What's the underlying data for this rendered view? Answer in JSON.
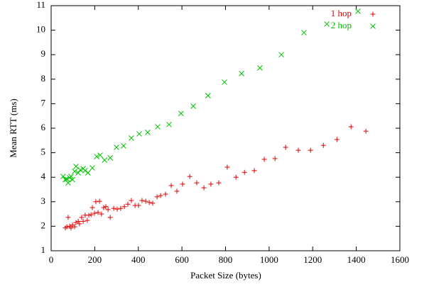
{
  "chart_data": {
    "type": "scatter",
    "x_label": "Packet Size (bytes)",
    "y_label": "Mean RTT (ms)",
    "xlim": [
      0,
      1600
    ],
    "xticks": [
      0,
      200,
      400,
      600,
      800,
      1000,
      1200,
      1400,
      1600
    ],
    "ylim": [
      1,
      11
    ],
    "yticks": [
      1,
      2,
      3,
      4,
      5,
      6,
      7,
      8,
      9,
      10,
      11
    ],
    "legend": "top-right",
    "series": [
      {
        "name": "1 hop",
        "color": "#e00000",
        "marker": "plus",
        "x": [
          72,
          78,
          65,
          85,
          91,
          98,
          108,
          114,
          124,
          130,
          140,
          147,
          156,
          166,
          173,
          183,
          189,
          199,
          205,
          215,
          222,
          231,
          241,
          251,
          261,
          271,
          287,
          303,
          319,
          336,
          352,
          368,
          385,
          401,
          417,
          434,
          450,
          466,
          486,
          502,
          525,
          551,
          577,
          603,
          636,
          668,
          701,
          733,
          769,
          808,
          848,
          887,
          932,
          978,
          1027,
          1076,
          1134,
          1190,
          1249,
          1311,
          1376,
          1444
        ],
        "values": [
          1.98,
          2.36,
          1.93,
          2.0,
          1.93,
          2.05,
          1.98,
          2.15,
          2.2,
          2.1,
          2.36,
          2.2,
          2.45,
          2.24,
          2.45,
          2.47,
          2.76,
          2.53,
          3.0,
          2.56,
          3.02,
          2.5,
          2.76,
          2.8,
          2.68,
          2.36,
          2.73,
          2.7,
          2.73,
          2.8,
          2.9,
          3.05,
          2.85,
          2.85,
          3.05,
          3.02,
          2.97,
          2.94,
          3.2,
          3.25,
          3.31,
          3.66,
          3.43,
          3.72,
          4.03,
          3.77,
          3.57,
          3.72,
          3.77,
          4.41,
          4.0,
          4.2,
          4.27,
          4.73,
          4.76,
          5.22,
          5.1,
          5.1,
          5.3,
          5.54,
          6.06,
          5.88
        ]
      },
      {
        "name": "2 hop",
        "color": "#00c000",
        "marker": "cross",
        "x": [
          55,
          65,
          72,
          78,
          85,
          91,
          98,
          108,
          114,
          124,
          134,
          147,
          156,
          169,
          189,
          209,
          225,
          245,
          271,
          300,
          332,
          368,
          404,
          443,
          489,
          541,
          596,
          652,
          720,
          795,
          874,
          958,
          1056,
          1160,
          1265,
          1408
        ],
        "values": [
          4.03,
          3.9,
          3.92,
          3.77,
          3.98,
          4.03,
          3.9,
          4.24,
          4.44,
          4.18,
          4.3,
          4.35,
          4.27,
          4.18,
          4.38,
          4.84,
          4.9,
          4.7,
          4.79,
          5.22,
          5.28,
          5.6,
          5.77,
          5.83,
          6.06,
          6.15,
          6.6,
          6.9,
          7.33,
          7.88,
          8.23,
          8.46,
          9.0,
          9.9,
          10.25,
          10.77
        ]
      }
    ]
  }
}
